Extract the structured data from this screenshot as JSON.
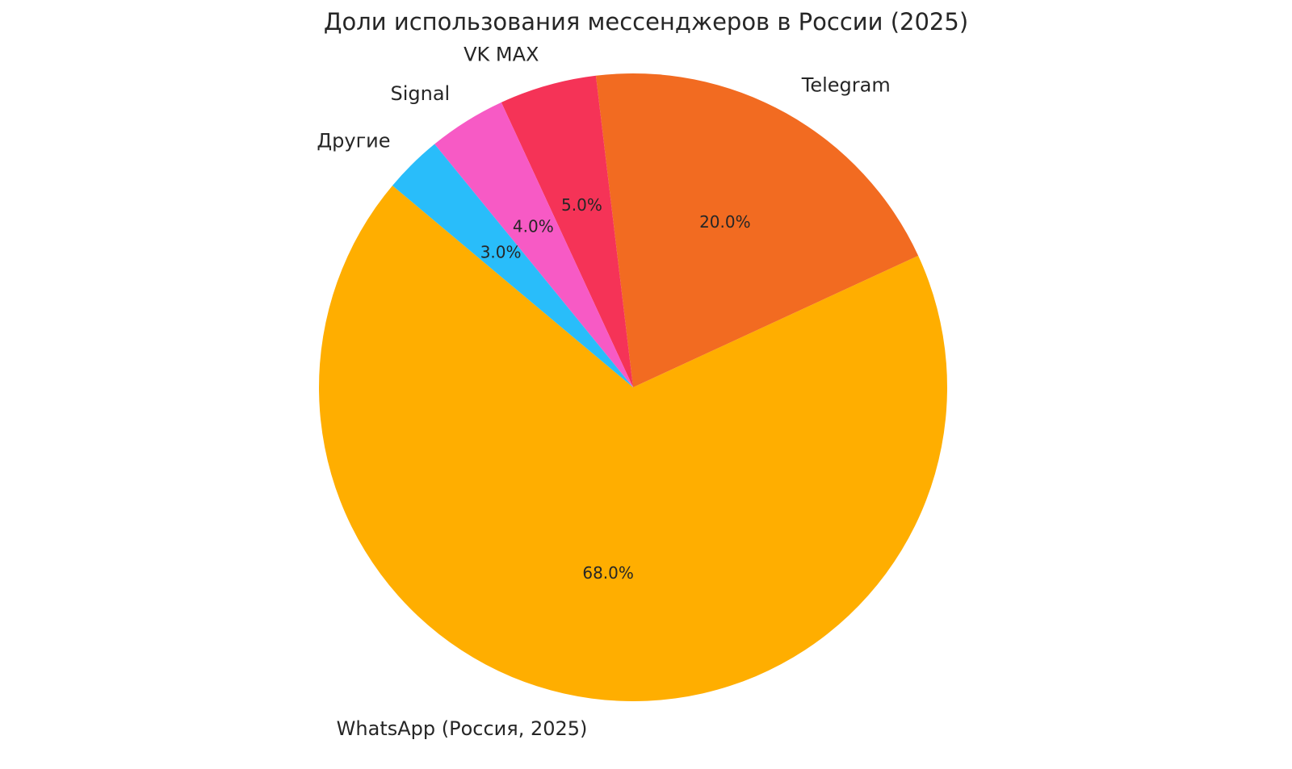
{
  "chart_data": {
    "type": "pie",
    "title": "Доли использования мессенджеров в России (2025)",
    "categories": [
      "WhatsApp (Россия, 2025)",
      "Telegram",
      "VK MAX",
      "Signal",
      "Другие"
    ],
    "values": [
      68,
      20,
      5,
      4,
      3
    ],
    "value_labels": [
      "68.0%",
      "20.0%",
      "5.0%",
      "4.0%",
      "3.0%"
    ],
    "colors": [
      "#ffae00",
      "#f26b21",
      "#f53357",
      "#f75ac5",
      "#29bdfa"
    ]
  }
}
